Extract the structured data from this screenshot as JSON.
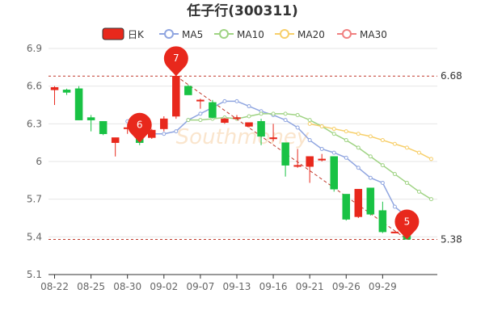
{
  "chart_data": {
    "type": "candlestick",
    "title": "任子行(300311)",
    "ylim": [
      5.1,
      6.9
    ],
    "yticks": [
      "5.1",
      "5.4",
      "5.7",
      "6",
      "6.3",
      "6.6",
      "6.9"
    ],
    "xtick_labels": [
      {
        "index": 0,
        "label": "08-22"
      },
      {
        "index": 3,
        "label": "08-25"
      },
      {
        "index": 6,
        "label": "08-30"
      },
      {
        "index": 9,
        "label": "09-02"
      },
      {
        "index": 12,
        "label": "09-07"
      },
      {
        "index": 15,
        "label": "09-13"
      },
      {
        "index": 18,
        "label": "09-16"
      },
      {
        "index": 21,
        "label": "09-21"
      },
      {
        "index": 24,
        "label": "09-26"
      },
      {
        "index": 27,
        "label": "09-29"
      }
    ],
    "legend": [
      {
        "name": "日K",
        "color": "#e8281c",
        "kind": "box"
      },
      {
        "name": "MA5",
        "color": "#8fa5e0",
        "kind": "circle"
      },
      {
        "name": "MA10",
        "color": "#9fd383",
        "kind": "circle"
      },
      {
        "name": "MA20",
        "color": "#f7cf6a",
        "kind": "circle"
      },
      {
        "name": "MA30",
        "color": "#f08080",
        "kind": "circle"
      }
    ],
    "up_color": "#e8281c",
    "down_color": "#19c244",
    "candles": [
      {
        "open": 6.57,
        "close": 6.59,
        "low": 6.45,
        "high": 6.6
      },
      {
        "open": 6.57,
        "close": 6.55,
        "low": 6.53,
        "high": 6.58
      },
      {
        "open": 6.58,
        "close": 6.33,
        "low": 6.33,
        "high": 6.6
      },
      {
        "open": 6.35,
        "close": 6.33,
        "low": 6.24,
        "high": 6.37
      },
      {
        "open": 6.32,
        "close": 6.22,
        "low": 6.21,
        "high": 6.32
      },
      {
        "open": 6.15,
        "close": 6.19,
        "low": 6.04,
        "high": 6.19
      },
      {
        "open": 6.26,
        "close": 6.27,
        "low": 6.22,
        "high": 6.3
      },
      {
        "open": 6.22,
        "close": 6.15,
        "low": 6.13,
        "high": 6.25
      },
      {
        "open": 6.19,
        "close": 6.25,
        "low": 6.18,
        "high": 6.26
      },
      {
        "open": 6.26,
        "close": 6.34,
        "low": 6.24,
        "high": 6.36
      },
      {
        "open": 6.36,
        "close": 6.68,
        "low": 6.34,
        "high": 6.7
      },
      {
        "open": 6.6,
        "close": 6.53,
        "low": 6.53,
        "high": 6.61
      },
      {
        "open": 6.48,
        "close": 6.49,
        "low": 6.42,
        "high": 6.5
      },
      {
        "open": 6.47,
        "close": 6.35,
        "low": 6.34,
        "high": 6.49
      },
      {
        "open": 6.31,
        "close": 6.34,
        "low": 6.3,
        "high": 6.35
      },
      {
        "open": 6.35,
        "close": 6.35,
        "low": 6.34,
        "high": 6.37
      },
      {
        "open": 6.28,
        "close": 6.31,
        "low": 6.27,
        "high": 6.31
      },
      {
        "open": 6.32,
        "close": 6.2,
        "low": 6.13,
        "high": 6.34
      },
      {
        "open": 6.18,
        "close": 6.19,
        "low": 6.16,
        "high": 6.3
      },
      {
        "open": 6.15,
        "close": 5.97,
        "low": 5.88,
        "high": 6.15
      },
      {
        "open": 5.96,
        "close": 5.97,
        "low": 5.95,
        "high": 6.1
      },
      {
        "open": 5.96,
        "close": 6.04,
        "low": 5.83,
        "high": 6.04
      },
      {
        "open": 6.01,
        "close": 6.02,
        "low": 6.0,
        "high": 6.06
      },
      {
        "open": 6.04,
        "close": 5.78,
        "low": 5.76,
        "high": 6.04
      },
      {
        "open": 5.74,
        "close": 5.54,
        "low": 5.53,
        "high": 5.74
      },
      {
        "open": 5.56,
        "close": 5.78,
        "low": 5.55,
        "high": 5.78
      },
      {
        "open": 5.79,
        "close": 5.58,
        "low": 5.57,
        "high": 5.79
      },
      {
        "open": 5.61,
        "close": 5.44,
        "low": 5.43,
        "high": 5.68
      },
      {
        "open": 5.43,
        "close": 5.44,
        "low": 5.43,
        "high": 5.44
      },
      {
        "open": 5.46,
        "close": 5.38,
        "low": 5.38,
        "high": 5.46
      }
    ],
    "ma_series": [
      {
        "name": "MA5",
        "color": "#8fa5e0",
        "points": [
          [
            6,
            6.32
          ],
          [
            7,
            6.27
          ],
          [
            8,
            6.22
          ],
          [
            9,
            6.22
          ],
          [
            10,
            6.24
          ],
          [
            11,
            6.33
          ],
          [
            12,
            6.38
          ],
          [
            13,
            6.43
          ],
          [
            14,
            6.48
          ],
          [
            15,
            6.48
          ],
          [
            16,
            6.44
          ],
          [
            17,
            6.4
          ],
          [
            18,
            6.37
          ],
          [
            19,
            6.33
          ],
          [
            20,
            6.27
          ],
          [
            21,
            6.17
          ],
          [
            22,
            6.1
          ],
          [
            23,
            6.07
          ],
          [
            24,
            6.03
          ],
          [
            25,
            5.95
          ],
          [
            26,
            5.87
          ],
          [
            27,
            5.83
          ],
          [
            28,
            5.64
          ],
          [
            29,
            5.56
          ]
        ]
      },
      {
        "name": "MA10",
        "color": "#9fd383",
        "points": [
          [
            11,
            6.33
          ],
          [
            12,
            6.33
          ],
          [
            13,
            6.34
          ],
          [
            14,
            6.35
          ],
          [
            15,
            6.34
          ],
          [
            16,
            6.36
          ],
          [
            17,
            6.38
          ],
          [
            18,
            6.38
          ],
          [
            19,
            6.38
          ],
          [
            20,
            6.37
          ],
          [
            21,
            6.33
          ],
          [
            22,
            6.28
          ],
          [
            23,
            6.22
          ],
          [
            24,
            6.17
          ],
          [
            25,
            6.11
          ],
          [
            26,
            6.04
          ],
          [
            27,
            5.97
          ],
          [
            28,
            5.9
          ],
          [
            29,
            5.83
          ],
          [
            30,
            5.76
          ],
          [
            31,
            5.7
          ]
        ]
      },
      {
        "name": "MA20",
        "color": "#f7cf6a",
        "points": [
          [
            21,
            6.3
          ],
          [
            22,
            6.28
          ],
          [
            23,
            6.26
          ],
          [
            24,
            6.24
          ],
          [
            25,
            6.22
          ],
          [
            26,
            6.2
          ],
          [
            27,
            6.17
          ],
          [
            28,
            6.14
          ],
          [
            29,
            6.11
          ],
          [
            30,
            6.07
          ],
          [
            31,
            6.02
          ]
        ]
      }
    ],
    "ref_lines": [
      {
        "value": 6.68,
        "label": "6.68"
      },
      {
        "value": 5.38,
        "label": "5.38"
      }
    ],
    "trend_line": {
      "from_index": 10,
      "from_value": 6.68,
      "to_index": 29,
      "to_value": 5.38
    },
    "markers": [
      {
        "index": 7,
        "value": 6.15,
        "label": "6"
      },
      {
        "index": 10,
        "value": 6.68,
        "label": "7"
      },
      {
        "index": 29,
        "value": 5.38,
        "label": "5"
      }
    ],
    "watermark": "Southmoney"
  }
}
